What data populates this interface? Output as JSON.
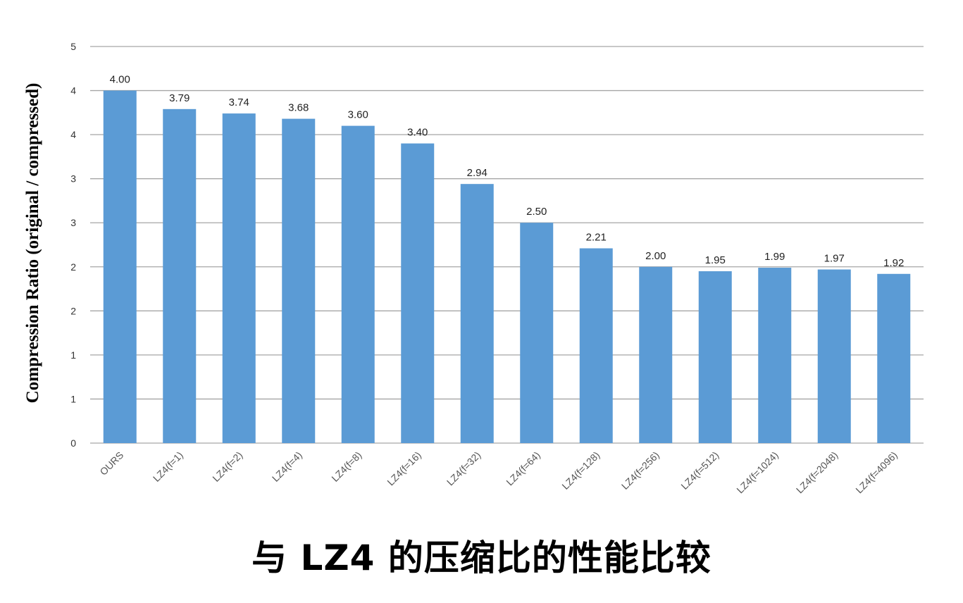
{
  "caption": "与 LZ4 的压缩比的性能比较",
  "chart_data": {
    "type": "bar",
    "title": "",
    "xlabel": "",
    "ylabel": "Compression Ratio (original / compressed)",
    "categories": [
      "OURS",
      "LZ4(f=1)",
      "LZ4(f=2)",
      "LZ4(f=4)",
      "LZ4(f=8)",
      "LZ4(f=16)",
      "LZ4(f=32)",
      "LZ4(f=64)",
      "LZ4(f=128)",
      "LZ4(f=256)",
      "LZ4(f=512)",
      "LZ4(f=1024)",
      "LZ4(f=2048)",
      "LZ4(f=4096)"
    ],
    "values": [
      4.0,
      3.79,
      3.74,
      3.68,
      3.6,
      3.4,
      2.94,
      2.5,
      2.21,
      2.0,
      1.95,
      1.99,
      1.97,
      1.92
    ],
    "data_labels": [
      "4.00",
      "3.79",
      "3.74",
      "3.68",
      "3.60",
      "3.40",
      "2.94",
      "2.50",
      "2.21",
      "2.00",
      "1.95",
      "1.99",
      "1.97",
      "1.92"
    ],
    "ylim": [
      0,
      4.5
    ],
    "y_ticks": [
      0,
      0.5,
      1,
      1.5,
      2,
      2.5,
      3,
      3.5,
      4,
      4.5
    ],
    "y_tick_labels": [
      "0",
      "1",
      "1",
      "2",
      "2",
      "3",
      "3",
      "4",
      "4",
      "5"
    ],
    "grid": true,
    "legend": "none",
    "bar_color": "#5b9bd5",
    "grid_color": "#a6a6a6"
  }
}
